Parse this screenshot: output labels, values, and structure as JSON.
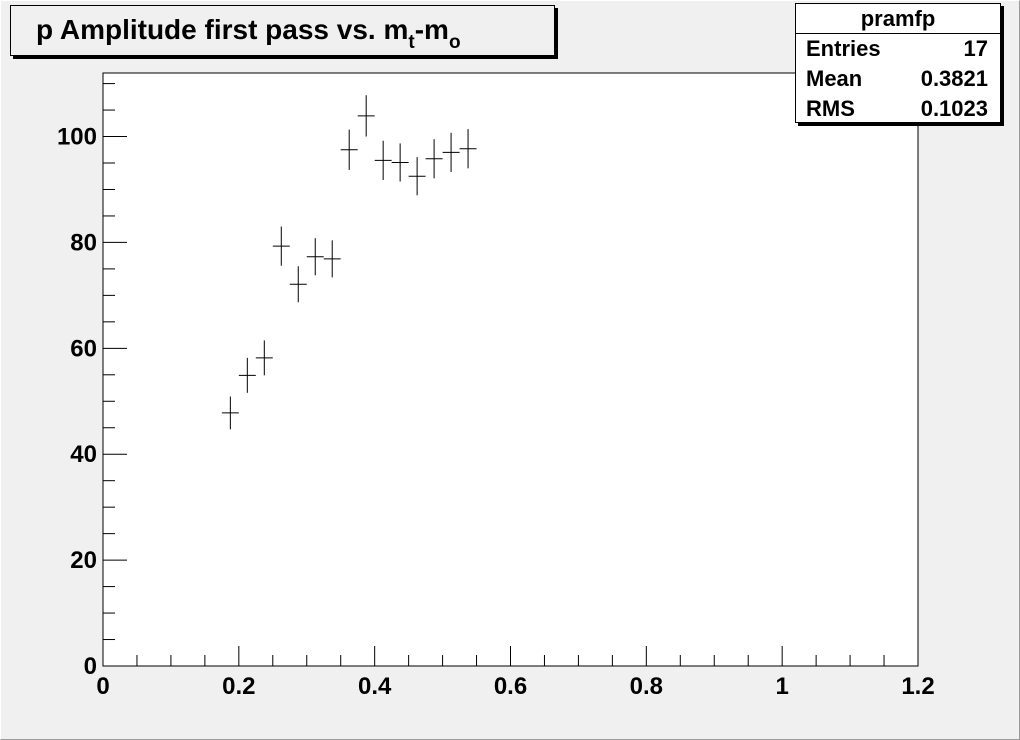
{
  "title": {
    "prefix": "p Amplitude first pass vs. m",
    "sub1": "t",
    "mid": "-m",
    "sub2": "o"
  },
  "stats": {
    "name": "pramfp",
    "rows": [
      {
        "label": "Entries",
        "value": "17"
      },
      {
        "label": "Mean",
        "value": "0.3821"
      },
      {
        "label": "RMS",
        "value": "0.1023"
      }
    ]
  },
  "chart_data": {
    "type": "scatter",
    "xlim": [
      0,
      1.2
    ],
    "ylim": [
      0,
      112
    ],
    "x_ticks": [
      {
        "value": 0,
        "label": "0"
      },
      {
        "value": 0.2,
        "label": "0.2"
      },
      {
        "value": 0.4,
        "label": "0.4"
      },
      {
        "value": 0.6,
        "label": "0.6"
      },
      {
        "value": 0.8,
        "label": "0.8"
      },
      {
        "value": 1,
        "label": "1"
      },
      {
        "value": 1.2,
        "label": "1.2"
      }
    ],
    "y_ticks": [
      {
        "value": 0,
        "label": "0"
      },
      {
        "value": 20,
        "label": "20"
      },
      {
        "value": 40,
        "label": "40"
      },
      {
        "value": 60,
        "label": "60"
      },
      {
        "value": 80,
        "label": "80"
      },
      {
        "value": 100,
        "label": "100"
      }
    ],
    "x_minor_step": 0.05,
    "y_minor_step": 5,
    "grid": false,
    "points": [
      {
        "x": 0.1875,
        "y": 47.8,
        "xerr": 0.0125,
        "yerr": 3.1
      },
      {
        "x": 0.2125,
        "y": 54.9,
        "xerr": 0.0125,
        "yerr": 3.3
      },
      {
        "x": 0.2375,
        "y": 58.2,
        "xerr": 0.0125,
        "yerr": 3.3
      },
      {
        "x": 0.2625,
        "y": 79.3,
        "xerr": 0.0125,
        "yerr": 3.7
      },
      {
        "x": 0.2875,
        "y": 72.1,
        "xerr": 0.0125,
        "yerr": 3.4
      },
      {
        "x": 0.3125,
        "y": 77.3,
        "xerr": 0.0125,
        "yerr": 3.5
      },
      {
        "x": 0.3375,
        "y": 76.9,
        "xerr": 0.0125,
        "yerr": 3.5
      },
      {
        "x": 0.3625,
        "y": 97.5,
        "xerr": 0.0125,
        "yerr": 3.8
      },
      {
        "x": 0.3875,
        "y": 103.9,
        "xerr": 0.0125,
        "yerr": 3.9
      },
      {
        "x": 0.4125,
        "y": 95.5,
        "xerr": 0.0125,
        "yerr": 3.7
      },
      {
        "x": 0.4375,
        "y": 95.1,
        "xerr": 0.0125,
        "yerr": 3.6
      },
      {
        "x": 0.4625,
        "y": 92.5,
        "xerr": 0.0125,
        "yerr": 3.6
      },
      {
        "x": 0.4875,
        "y": 95.8,
        "xerr": 0.0125,
        "yerr": 3.7
      },
      {
        "x": 0.5125,
        "y": 97.0,
        "xerr": 0.0125,
        "yerr": 3.7
      },
      {
        "x": 0.5375,
        "y": 97.7,
        "xerr": 0.0125,
        "yerr": 3.7
      }
    ],
    "colors": {
      "frame_background": "#ffffff",
      "canvas_background": "#f0f0f0",
      "marker": "#000000"
    }
  }
}
